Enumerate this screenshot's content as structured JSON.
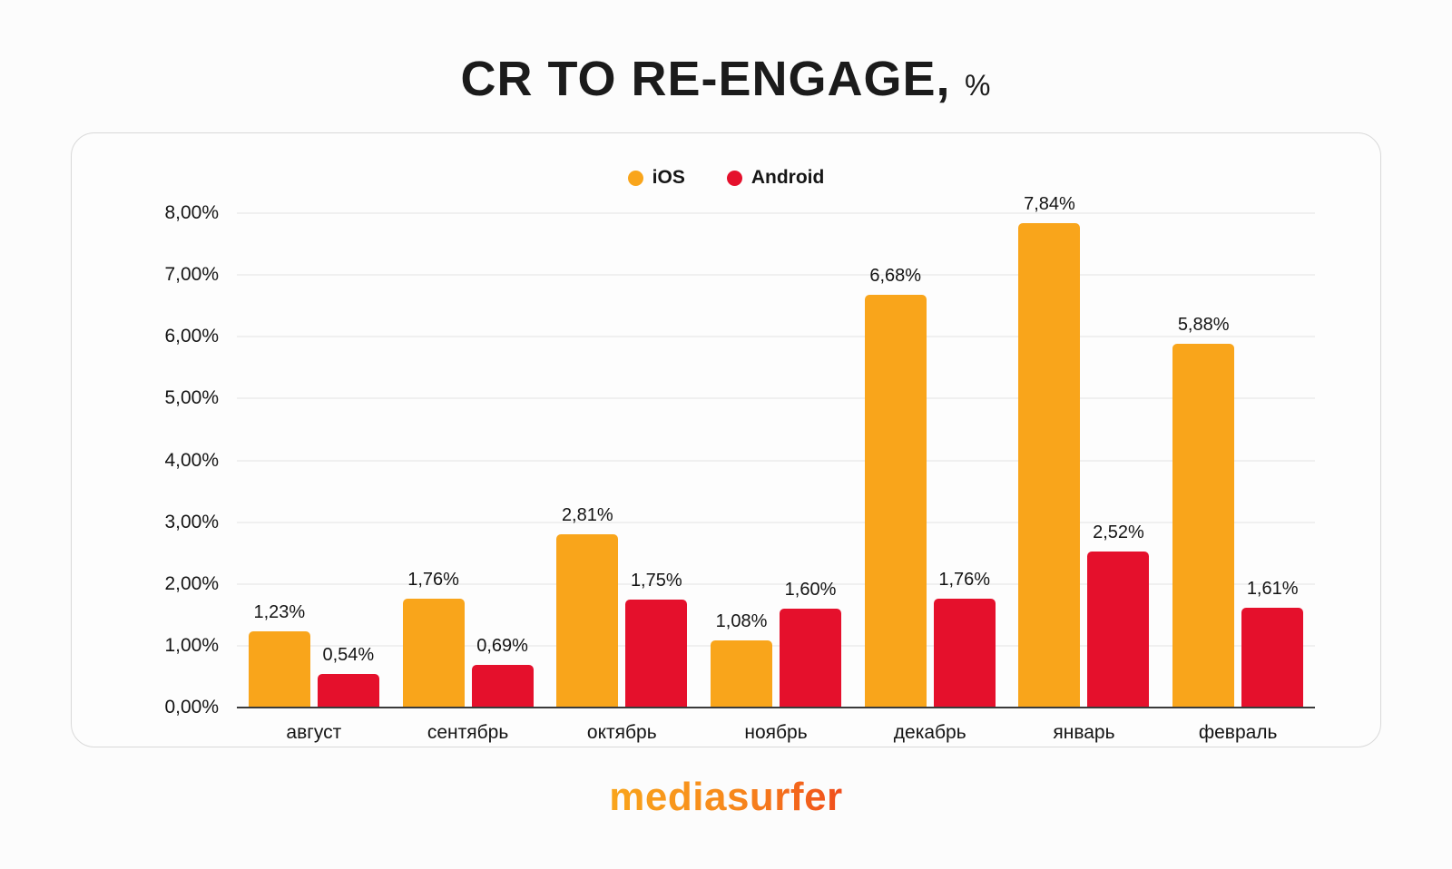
{
  "title": {
    "main": "CR TO RE-ENGAGE,",
    "suffix": "%"
  },
  "legend": [
    {
      "label": "iOS",
      "color": "#F9A51B"
    },
    {
      "label": "Android",
      "color": "#E5102C"
    }
  ],
  "footer": {
    "logo": "mediasurfer"
  },
  "chart_data": {
    "type": "bar",
    "title": "CR TO RE-ENGAGE, %",
    "categories": [
      "август",
      "сентябрь",
      "октябрь",
      "ноябрь",
      "декабрь",
      "январь",
      "февраль"
    ],
    "series": [
      {
        "name": "iOS",
        "color": "#F9A51B",
        "values": [
          1.23,
          1.76,
          2.81,
          1.08,
          6.68,
          7.84,
          5.88
        ],
        "labels": [
          "1,23%",
          "1,76%",
          "2,81%",
          "1,08%",
          "6,68%",
          "7,84%",
          "5,88%"
        ]
      },
      {
        "name": "Android",
        "color": "#E5102C",
        "values": [
          0.54,
          0.69,
          1.75,
          1.6,
          1.76,
          2.52,
          1.61
        ],
        "labels": [
          "0,54%",
          "0,69%",
          "1,75%",
          "1,60%",
          "1,76%",
          "2,52%",
          "1,61%"
        ]
      }
    ],
    "ylim": [
      0,
      8
    ],
    "ytick_step": 1,
    "ytick_labels": [
      "0,00%",
      "1,00%",
      "2,00%",
      "3,00%",
      "4,00%",
      "5,00%",
      "6,00%",
      "7,00%",
      "8,00%"
    ],
    "grid": true,
    "legend_position": "top-center",
    "xlabel": "",
    "ylabel": ""
  }
}
